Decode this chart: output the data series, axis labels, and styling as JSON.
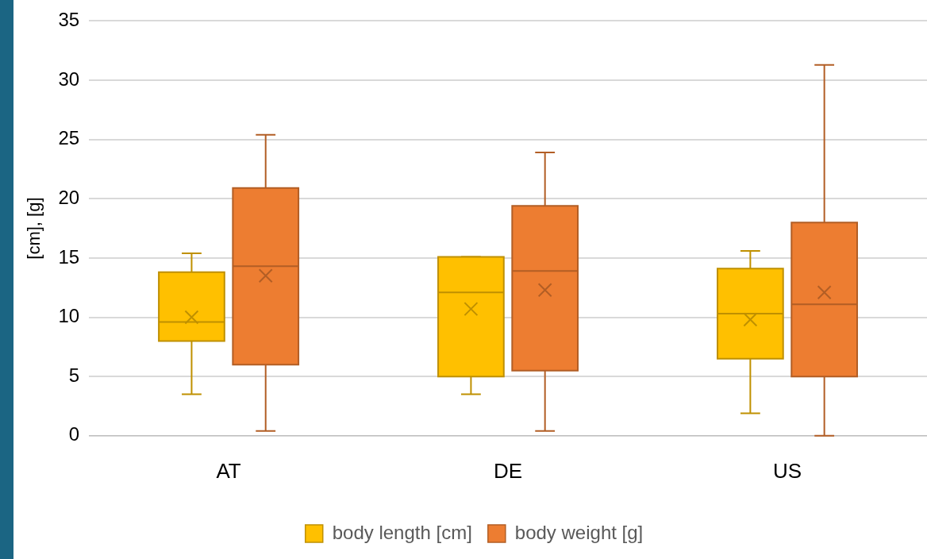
{
  "chart_data": {
    "type": "box",
    "ylabel": "[cm], [g]",
    "categories": [
      "AT",
      "DE",
      "US"
    ],
    "ylim": [
      0,
      35
    ],
    "yticks": [
      0,
      5,
      10,
      15,
      20,
      25,
      30,
      35
    ],
    "grid": "y",
    "legend": "bottom",
    "marker": "cross",
    "series": [
      {
        "name": "body length [cm]",
        "color": "#ffc000",
        "boxes": [
          {
            "low": 3.5,
            "q1": 8.0,
            "median": 9.6,
            "q3": 13.8,
            "high": 15.4,
            "mean": 10.0
          },
          {
            "low": 3.5,
            "q1": 5.0,
            "median": 12.1,
            "q3": 15.1,
            "high": 15.1,
            "mean": 10.7
          },
          {
            "low": 1.9,
            "q1": 6.5,
            "median": 10.3,
            "q3": 14.1,
            "high": 15.6,
            "mean": 9.8
          }
        ]
      },
      {
        "name": "body weight [g]",
        "color": "#ed7d31",
        "boxes": [
          {
            "low": 0.4,
            "q1": 6.0,
            "median": 14.3,
            "q3": 20.9,
            "high": 25.4,
            "mean": 13.5
          },
          {
            "low": 0.4,
            "q1": 5.5,
            "median": 13.9,
            "q3": 19.4,
            "high": 23.9,
            "mean": 12.3
          },
          {
            "low": 0.0,
            "q1": 5.0,
            "median": 11.1,
            "q3": 18.0,
            "high": 31.3,
            "mean": 12.1
          }
        ]
      }
    ]
  }
}
